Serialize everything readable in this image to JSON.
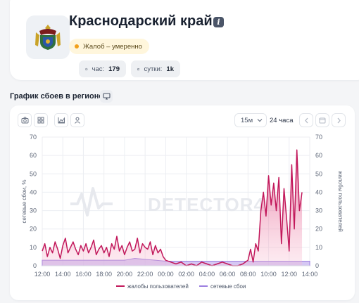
{
  "region": {
    "title": "Краснодарский край",
    "info_icon": "info-icon",
    "status": {
      "label": "Жалоб – умеренно",
      "color": "#f2a01b"
    },
    "stats": [
      {
        "icon": "clock-icon",
        "label": "час:",
        "value": "179"
      },
      {
        "icon": "calendar-icon",
        "label": "сутки:",
        "value": "1k"
      }
    ]
  },
  "section": {
    "title": "График сбоев в регионе",
    "icon": "monitor-icon"
  },
  "toolbar": {
    "tools": [
      "camera-icon",
      "grid-icon",
      "chart-area-icon",
      "user-icon"
    ],
    "interval": "15м",
    "range": "24 часа"
  },
  "watermark": "DETECTOR4",
  "colors": {
    "complaints": "#c2185b",
    "failures": "#9c7fe0"
  },
  "chart_data": {
    "type": "line",
    "x_ticks": [
      "12:00",
      "14:00",
      "16:00",
      "18:00",
      "20:00",
      "22:00",
      "00:00",
      "02:00",
      "04:00",
      "06:00",
      "08:00",
      "10:00",
      "12:00",
      "14:00"
    ],
    "x_range": [
      12,
      38
    ],
    "ylabel_left": "сетевые сбои, %",
    "ylabel_right": "жалобы пользователей",
    "ylim": [
      0,
      70
    ],
    "y_ticks": [
      0,
      10,
      20,
      30,
      40,
      50,
      60,
      70
    ],
    "legend": [
      "жалобы пользователей",
      "сетевые сбои"
    ],
    "legend_position": "bottom",
    "grid": true,
    "series": [
      {
        "name": "жалобы пользователей",
        "x": [
          12,
          12.25,
          12.5,
          12.75,
          13,
          13.25,
          13.5,
          13.75,
          14,
          14.25,
          14.5,
          14.75,
          15,
          15.25,
          15.5,
          15.75,
          16,
          16.25,
          16.5,
          16.75,
          17,
          17.25,
          17.5,
          17.75,
          18,
          18.25,
          18.5,
          18.75,
          19,
          19.25,
          19.5,
          19.75,
          20,
          20.25,
          20.5,
          20.75,
          21,
          21.25,
          21.5,
          21.75,
          22,
          22.25,
          22.5,
          22.75,
          23,
          23.25,
          23.5,
          23.75,
          24,
          24.5,
          25,
          25.5,
          26,
          26.5,
          27,
          27.5,
          28,
          28.5,
          29,
          29.5,
          30,
          30.5,
          31,
          31.5,
          32,
          32.25,
          32.5,
          32.75,
          33,
          33.25,
          33.5,
          33.75,
          34,
          34.25,
          34.5,
          34.75,
          35,
          35.25,
          35.5,
          35.75,
          36,
          36.25,
          36.5,
          36.75,
          37,
          37.25
        ],
        "values": [
          8,
          12,
          5,
          10,
          7,
          13,
          9,
          4,
          11,
          15,
          7,
          10,
          13,
          9,
          6,
          11,
          8,
          12,
          7,
          10,
          14,
          6,
          9,
          11,
          7,
          10,
          5,
          12,
          9,
          16,
          8,
          11,
          6,
          10,
          13,
          8,
          9,
          15,
          7,
          12,
          10,
          9,
          13,
          6,
          11,
          7,
          9,
          5,
          3,
          2,
          1,
          2,
          0,
          1,
          0,
          2,
          1,
          0,
          1,
          2,
          1,
          0,
          0,
          1,
          3,
          9,
          2,
          12,
          8,
          30,
          40,
          27,
          49,
          33,
          45,
          30,
          48,
          12,
          42,
          26,
          8,
          55,
          20,
          63,
          30,
          40
        ],
        "marks": "area+line"
      },
      {
        "name": "сетевые сбои",
        "x": [
          12,
          20,
          21,
          22,
          23,
          24,
          38
        ],
        "values": [
          3,
          3,
          4,
          3.5,
          3,
          2.5,
          2.5
        ],
        "marks": "area"
      }
    ]
  }
}
